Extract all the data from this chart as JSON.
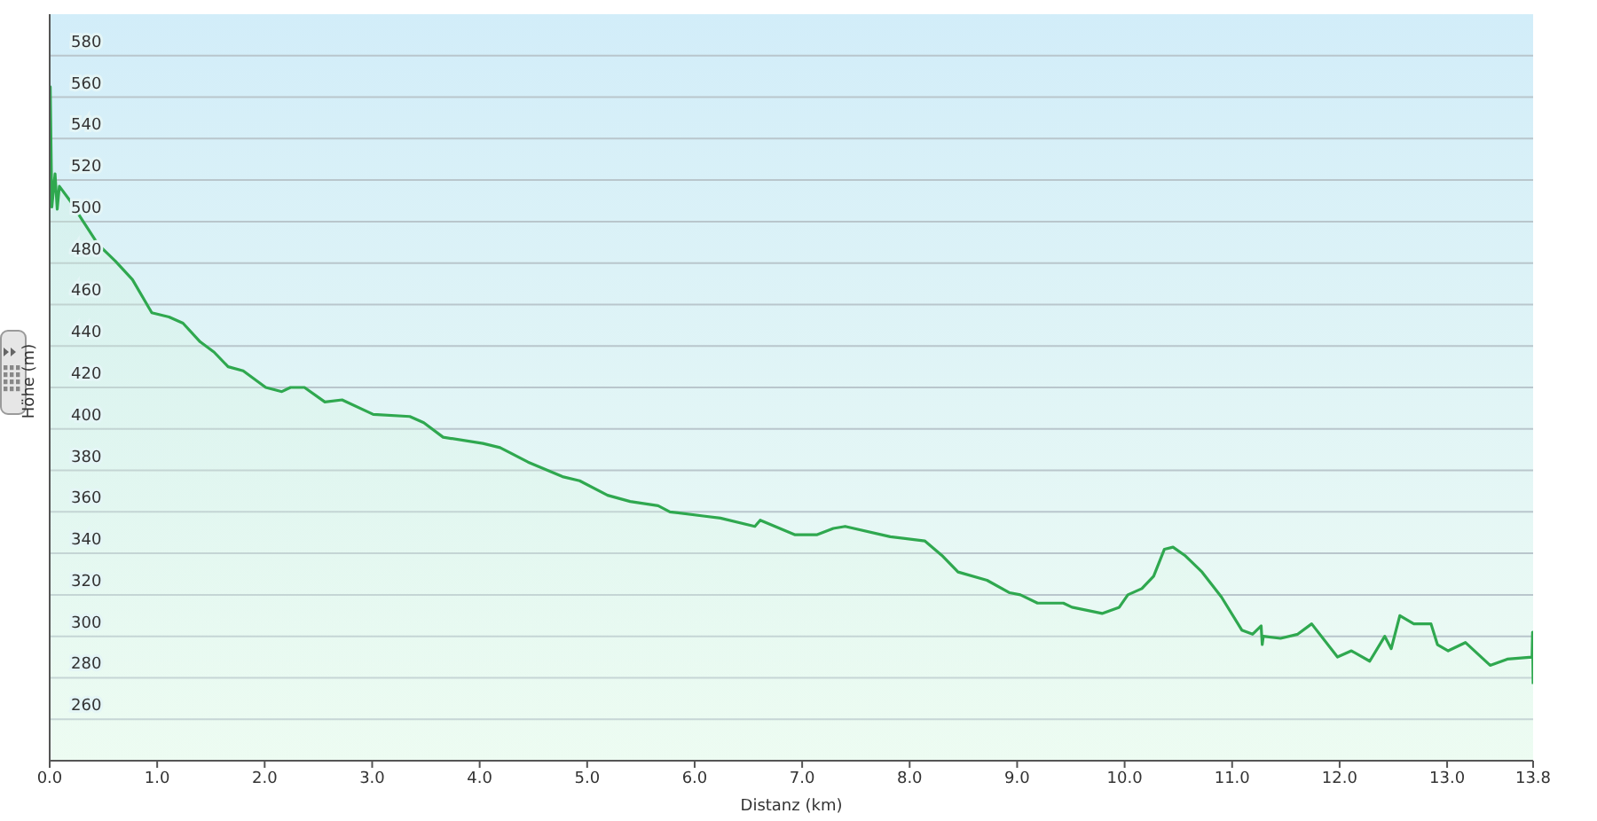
{
  "chart_data": {
    "type": "area",
    "xlabel": "Distanz  (km)",
    "ylabel": "Höhe (m)",
    "x": [
      0,
      0.005,
      0.02,
      0.05,
      0.07,
      0.09,
      0.19,
      0.3,
      0.45,
      0.61,
      0.77,
      0.95,
      1.11,
      1.24,
      1.4,
      1.53,
      1.66,
      1.8,
      2.01,
      2.16,
      2.24,
      2.37,
      2.56,
      2.72,
      3.01,
      3.35,
      3.48,
      3.66,
      4.03,
      4.19,
      4.45,
      4.77,
      4.93,
      5.19,
      5.4,
      5.66,
      5.77,
      6.08,
      6.24,
      6.56,
      6.61,
      6.93,
      7.14,
      7.29,
      7.4,
      7.82,
      8.14,
      8.3,
      8.45,
      8.72,
      8.93,
      9.03,
      9.19,
      9.43,
      9.51,
      9.79,
      9.95,
      10.03,
      10.16,
      10.27,
      10.37,
      10.45,
      10.56,
      10.72,
      10.9,
      11.09,
      11.19,
      11.27,
      11.28,
      11.29,
      11.45,
      11.61,
      11.74,
      11.98,
      12.11,
      12.28,
      12.42,
      12.48,
      12.56,
      12.69,
      12.85,
      12.91,
      13.01,
      13.17,
      13.4,
      13.56,
      13.79,
      13.795,
      13.8
    ],
    "series": [
      {
        "color": "#2fa84f",
        "values": [
          540,
          565,
          507,
          523,
          506,
          517,
          510,
          501,
          489,
          481,
          472,
          456,
          454,
          451,
          442,
          437,
          430,
          428,
          420,
          418,
          420,
          420,
          413,
          414,
          407,
          406,
          403,
          396,
          393,
          391,
          384,
          377,
          375,
          368,
          365,
          363,
          360,
          358,
          357,
          353,
          356,
          349,
          349,
          352,
          353,
          348,
          346,
          339,
          331,
          327,
          321,
          320,
          316,
          316,
          314,
          311,
          314,
          320,
          323,
          329,
          342,
          343,
          339,
          331,
          319,
          303,
          301,
          305,
          296,
          300,
          299,
          301,
          306,
          290,
          293,
          288,
          300,
          294,
          310,
          306,
          306,
          296,
          293,
          297,
          286,
          289,
          290,
          302,
          277
        ]
      }
    ],
    "ylim": [
      240,
      600
    ],
    "yticks": [
      260,
      280,
      300,
      320,
      340,
      360,
      380,
      400,
      420,
      440,
      460,
      480,
      500,
      520,
      540,
      560,
      580
    ],
    "xlim": [
      0,
      13.8
    ],
    "xticks": [
      {
        "value": 0,
        "label": "0.0"
      },
      {
        "value": 1,
        "label": "1.0"
      },
      {
        "value": 2,
        "label": "2.0"
      },
      {
        "value": 3,
        "label": "3.0"
      },
      {
        "value": 4,
        "label": "4.0"
      },
      {
        "value": 5,
        "label": "5.0"
      },
      {
        "value": 6,
        "label": "6.0"
      },
      {
        "value": 7,
        "label": "7.0"
      },
      {
        "value": 8,
        "label": "8.0"
      },
      {
        "value": 9,
        "label": "9.0"
      },
      {
        "value": 10,
        "label": "10.0"
      },
      {
        "value": 11,
        "label": "11.0"
      },
      {
        "value": 12,
        "label": "12.0"
      },
      {
        "value": 13,
        "label": "13.0"
      },
      13.8
    ],
    "grid": "y",
    "legend": false,
    "marker": "none",
    "line_style": "solid"
  }
}
